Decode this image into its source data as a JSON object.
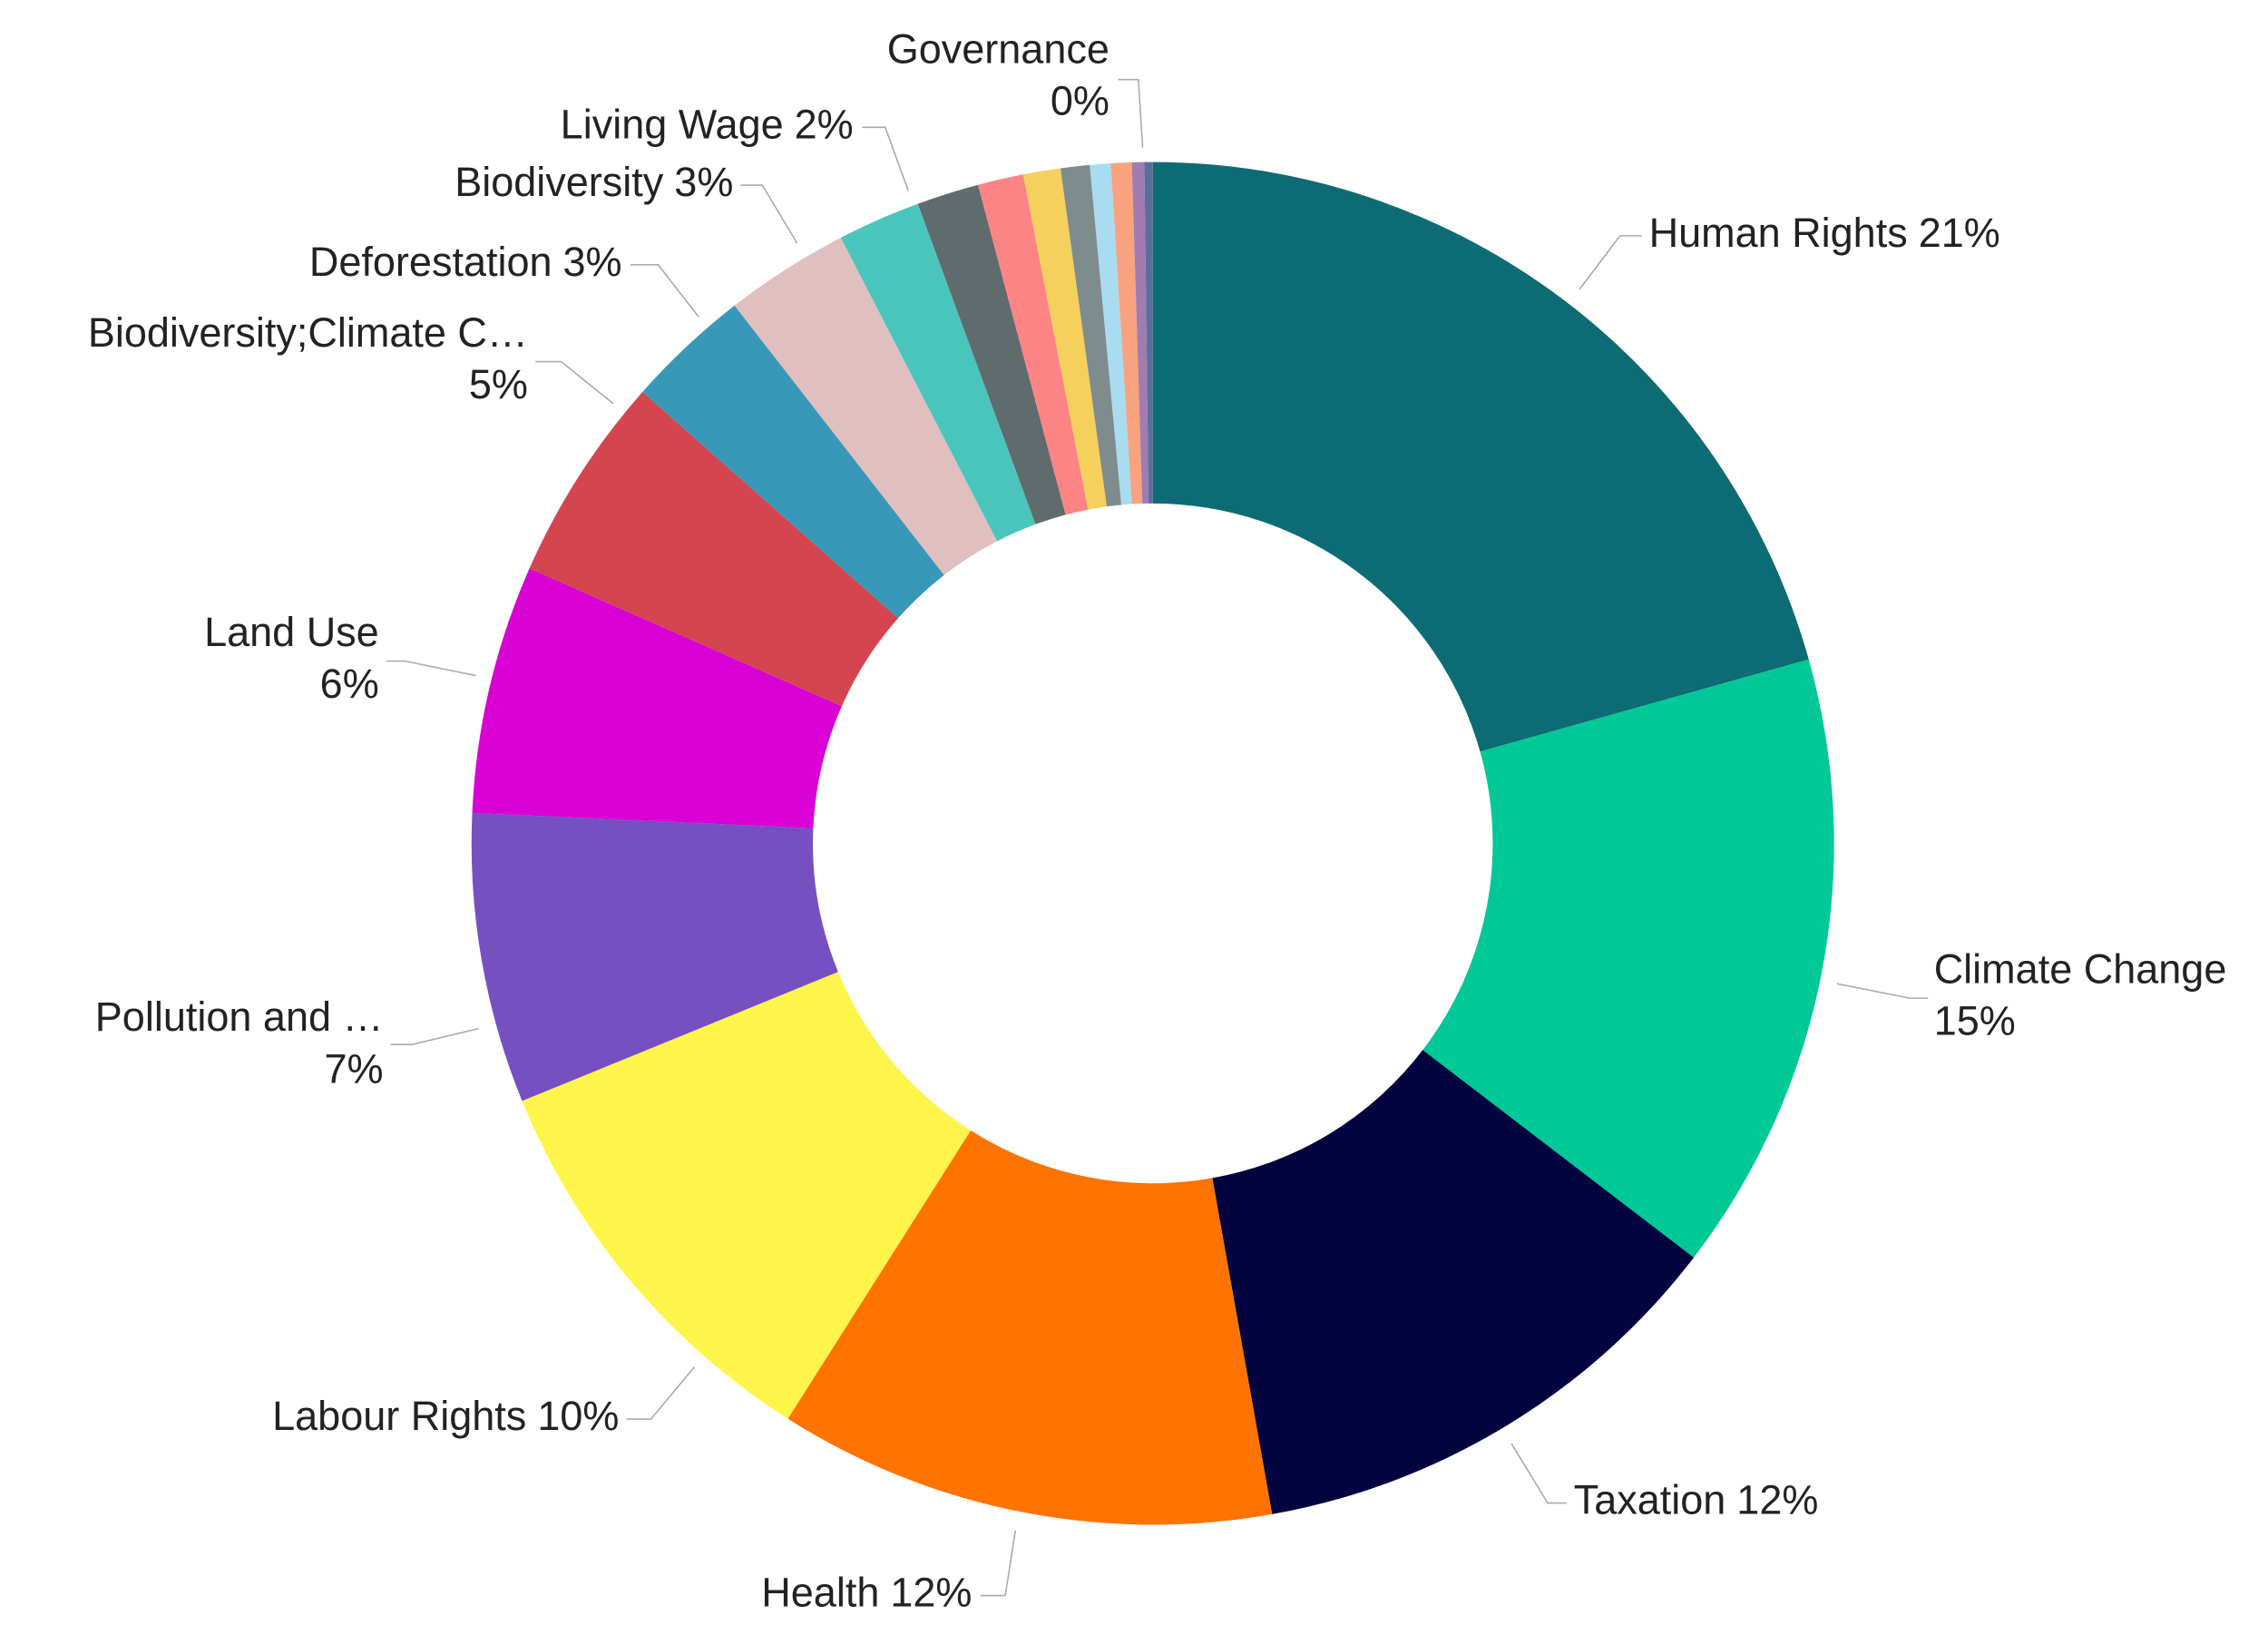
{
  "chart_data": {
    "type": "donut",
    "categories": [
      "Human Rights",
      "Climate Change",
      "Taxation",
      "Health",
      "Labour Rights",
      "Pollution and …",
      "Land Use",
      "Biodiversity;Climate C…",
      "Deforestation",
      "Biodiversity",
      "Living Wage",
      null,
      null,
      null,
      null,
      null,
      null,
      null,
      "Governance"
    ],
    "values": [
      21,
      15,
      12,
      12,
      10,
      7,
      6,
      5,
      3,
      3,
      2,
      1.5,
      1.1,
      0.9,
      0.7,
      0.5,
      0.5,
      0.3,
      0.2
    ],
    "value_labels": [
      "21%",
      "15%",
      "12%",
      "12%",
      "10%",
      "7%",
      "6%",
      "5%",
      "3%",
      "3%",
      "2%",
      null,
      null,
      null,
      null,
      null,
      null,
      null,
      "0%"
    ],
    "colors": [
      "#0d6b73",
      "#00c897",
      "#02033f",
      "#ff7300",
      "#fff44a",
      "#7650c0",
      "#d800d4",
      "#d5454f",
      "#3799b7",
      "#e0bfc1",
      "#4ac5bb",
      "#5f6b6d",
      "#fd8484",
      "#f5d05c",
      "#7f8c8d",
      "#a9dcf0",
      "#f9a27f",
      "#a07cb0",
      "#5a6e9c"
    ]
  }
}
